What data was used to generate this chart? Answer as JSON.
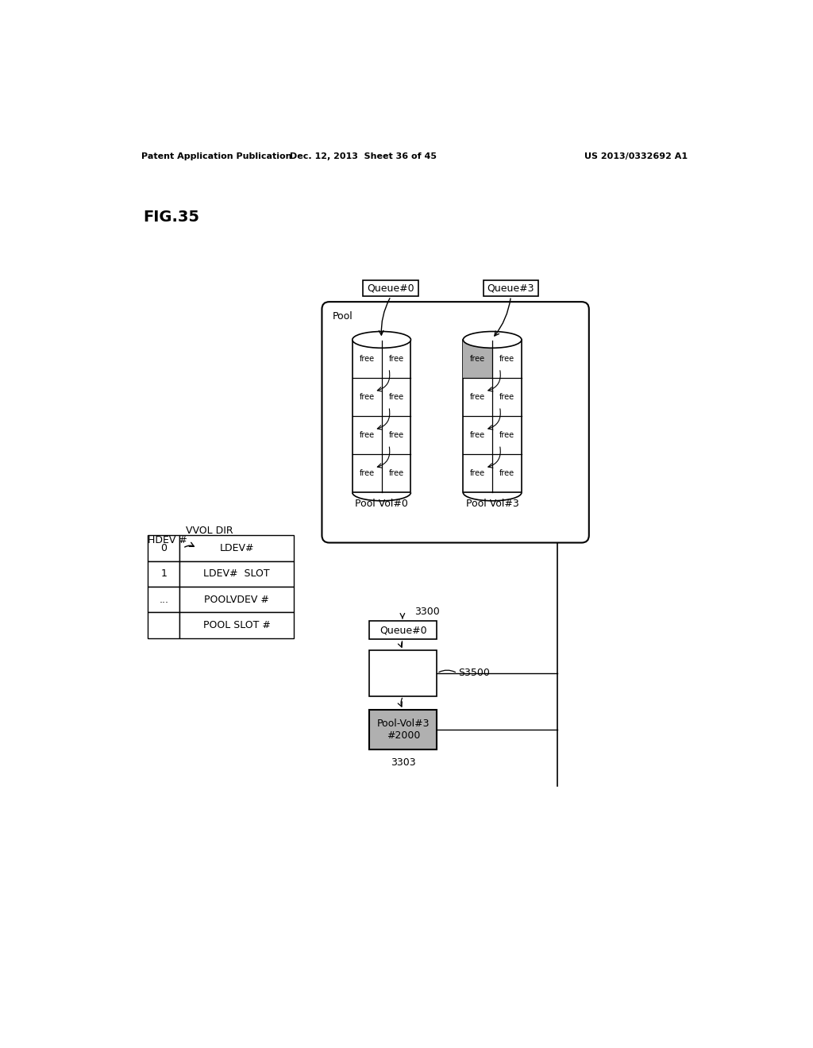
{
  "header_left": "Patent Application Publication",
  "header_mid": "Dec. 12, 2013  Sheet 36 of 45",
  "header_right": "US 2013/0332692 A1",
  "fig_label": "FIG.35",
  "queue0_label": "Queue#0",
  "queue3_label": "Queue#3",
  "pool_label": "Pool",
  "pool_vol0_label": "Pool Vol#0",
  "pool_vol3_label": "Pool Vol#3",
  "vvol_dir_label": "VVOL DIR",
  "hdev_label": "HDEV #",
  "hdev_rows": [
    "0",
    "1",
    "..."
  ],
  "dir_rows": [
    "LDEV#",
    "LDEV#  SLOT",
    "POOLVDEV #",
    "POOL SLOT #"
  ],
  "label_3300": "3300",
  "queue0_lower_label": "Queue#0",
  "label_s3500": "S3500",
  "pool_vol3_box_label": "Pool-Vol#3\n#2000",
  "label_3303": "3303",
  "bg_color": "#ffffff",
  "shaded_color": "#b0b0b0"
}
